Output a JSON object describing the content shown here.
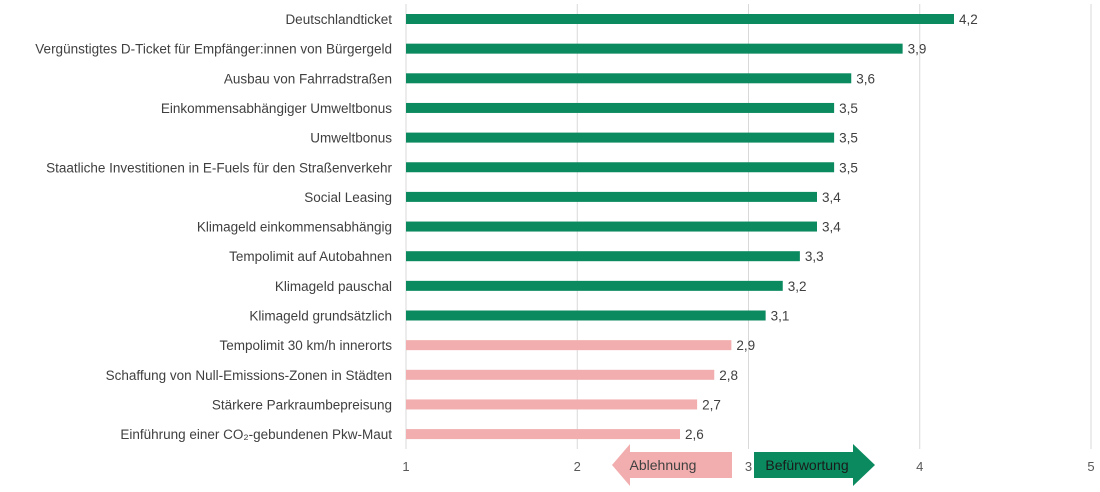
{
  "chart_data": {
    "type": "bar",
    "orientation": "horizontal",
    "categories": [
      "Deutschlandticket",
      "Vergünstigtes D-Ticket für Empfänger:innen von Bürgergeld",
      "Ausbau von Fahrradstraßen",
      "Einkommensabhängiger Umweltbonus",
      "Umweltbonus",
      "Staatliche Investitionen in E-Fuels für den Straßenverkehr",
      "Social Leasing",
      "Klimageld einkommensabhängig",
      "Tempolimit auf Autobahnen",
      "Klimageld pauschal",
      "Klimageld grundsätzlich",
      "Tempolimit 30 km/h innerorts",
      "Schaffung von Null-Emissions-Zonen in Städten",
      "Stärkere Parkraumbepreisung",
      "Einführung einer CO₂-gebundenen Pkw-Maut"
    ],
    "values": [
      4.2,
      3.9,
      3.6,
      3.5,
      3.5,
      3.5,
      3.4,
      3.4,
      3.3,
      3.2,
      3.1,
      2.9,
      2.8,
      2.7,
      2.6
    ],
    "value_labels": [
      "4,2",
      "3,9",
      "3,6",
      "3,5",
      "3,5",
      "3,5",
      "3,4",
      "3,4",
      "3,3",
      "3,2",
      "3,1",
      "2,9",
      "2,8",
      "2,7",
      "2,6"
    ],
    "xlim": [
      1,
      5
    ],
    "xticks": [
      1,
      2,
      3,
      4,
      5
    ],
    "xtick_labels": [
      "1",
      "2",
      "3",
      "4",
      "5"
    ],
    "threshold": 3,
    "grid": true,
    "colors": {
      "above_threshold": "#0c8a5f",
      "below_threshold": "#f2aeae",
      "grid": "#d9d9d9",
      "text": "#404040"
    },
    "annotations": {
      "left_arrow": {
        "text": "Ablehnung",
        "color": "#f2aeae",
        "text_color": "#404040"
      },
      "right_arrow": {
        "text": "Befürwortung",
        "color": "#0c8a5f",
        "text_color": "#1a1a1a"
      }
    }
  }
}
